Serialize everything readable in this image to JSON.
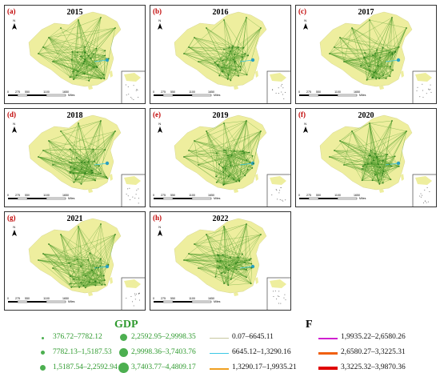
{
  "panels": [
    {
      "label": "(a)",
      "year": "2015"
    },
    {
      "label": "(b)",
      "year": "2016"
    },
    {
      "label": "(c)",
      "year": "2017"
    },
    {
      "label": "(d)",
      "year": "2018"
    },
    {
      "label": "(e)",
      "year": "2019"
    },
    {
      "label": "(f)",
      "year": "2020"
    },
    {
      "label": "(g)",
      "year": "2021"
    },
    {
      "label": "(h)",
      "year": "2022"
    }
  ],
  "scalebar": {
    "ticks": [
      "0",
      "275",
      "550",
      "1100",
      "1650"
    ],
    "unit": "Miles"
  },
  "north_label": "N",
  "legend": {
    "gdp_title": "GDP",
    "gdp_classes": [
      "376.72–7782.12",
      "7782.13–1,5187.53",
      "1,5187.54–2,2592.94",
      "2,2592.95–2,9998.35",
      "2,9998.36–3,7403.76",
      "3,7403.77–4,4809.17"
    ],
    "f_title": "F",
    "f_classes": [
      {
        "label": "0.07–6645.11",
        "color": "#c8c8a0"
      },
      {
        "label": "6645.12–1,3290.16",
        "color": "#3cc8e6"
      },
      {
        "label": "1,3290.17–1,9935.21",
        "color": "#f0a020"
      },
      {
        "label": "1,9935.22–2,6580.26",
        "color": "#d020d0"
      },
      {
        "label": "2,6580.27–3,3225.31",
        "color": "#f06010"
      },
      {
        "label": "3,3225.32–3,9870.36",
        "color": "#e00000"
      }
    ],
    "colors": {
      "land": "#eeee9e",
      "network": "#4c9a2a",
      "label": "#c00000",
      "gdp": "#2e9a2e"
    }
  }
}
